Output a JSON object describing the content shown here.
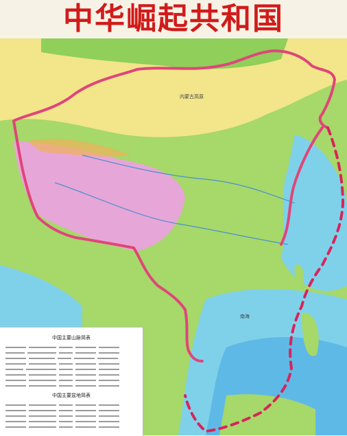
{
  "header": {
    "title": "中华崛起共和国"
  },
  "map": {
    "border_color": "#e0457a",
    "claim_line_color": "#d8245a",
    "plateau_color": "#e7a6d8",
    "sea_color": "#7fd1ea",
    "deep_sea_color": "#5fb9e6",
    "lowland_color": "#a6d86a",
    "desert_color": "#f2e58a",
    "labels": {
      "region_1": "内蒙古高原",
      "region_2": "南海"
    }
  },
  "legend": {
    "table_1_title": "中国主要山脉简表",
    "table_2_title": "中国主要盆地简表"
  }
}
